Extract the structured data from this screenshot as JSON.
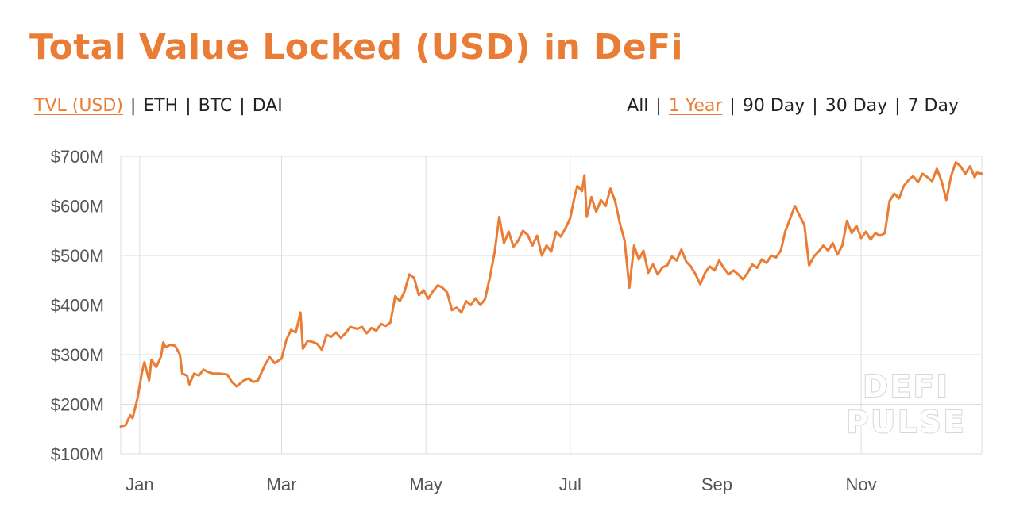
{
  "title": "Total Value Locked (USD) in DeFi",
  "metric_toggles": [
    {
      "label": "TVL (USD)",
      "active": true
    },
    {
      "label": "ETH",
      "active": false
    },
    {
      "label": "BTC",
      "active": false
    },
    {
      "label": "DAI",
      "active": false
    }
  ],
  "range_toggles": [
    {
      "label": "All",
      "active": false
    },
    {
      "label": "1 Year",
      "active": true
    },
    {
      "label": "90 Day",
      "active": false
    },
    {
      "label": "30 Day",
      "active": false
    },
    {
      "label": "7 Day",
      "active": false
    }
  ],
  "separator": "|",
  "watermark": {
    "line1": "DEFI",
    "line2": "PULSE"
  },
  "colors": {
    "accent": "#ea7d35",
    "line": "#ea7d35",
    "grid": "#dddddd"
  },
  "chart_data": {
    "type": "line",
    "title": "Total Value Locked (USD) in DeFi",
    "xlabel": "",
    "ylabel": "",
    "x_tick_labels": [
      "Jan",
      "Mar",
      "May",
      "Jul",
      "Sep",
      "Nov"
    ],
    "y_tick_values": [
      700,
      600,
      500,
      400,
      300,
      200,
      100
    ],
    "y_tick_labels": [
      "$700M",
      "$600M",
      "$500M",
      "$400M",
      "$300M",
      "$200M",
      "$100M"
    ],
    "ylim": [
      100,
      700
    ],
    "xlim": [
      "Dec 24",
      "Dec 22"
    ],
    "y_units": "$M",
    "grid": true,
    "series": [
      {
        "values": [
          [
            "Dec 24",
            155
          ],
          [
            "Dec 26",
            158
          ],
          [
            "Dec 28",
            178
          ],
          [
            "Dec 29",
            172
          ],
          [
            "Dec 31",
            210
          ],
          [
            "Jan 2",
            265
          ],
          [
            "Jan 3",
            285
          ],
          [
            "Jan 5",
            248
          ],
          [
            "Jan 6",
            290
          ],
          [
            "Jan 8",
            275
          ],
          [
            "Jan 10",
            296
          ],
          [
            "Jan 11",
            325
          ],
          [
            "Jan 12",
            315
          ],
          [
            "Jan 14",
            320
          ],
          [
            "Jan 16",
            318
          ],
          [
            "Jan 18",
            300
          ],
          [
            "Jan 19",
            262
          ],
          [
            "Jan 21",
            258
          ],
          [
            "Jan 22",
            240
          ],
          [
            "Jan 24",
            262
          ],
          [
            "Jan 26",
            258
          ],
          [
            "Jan 28",
            270
          ],
          [
            "Jan 30",
            265
          ],
          [
            "Feb 1",
            262
          ],
          [
            "Feb 4",
            262
          ],
          [
            "Feb 7",
            260
          ],
          [
            "Feb 9",
            245
          ],
          [
            "Feb 11",
            236
          ],
          [
            "Feb 14",
            248
          ],
          [
            "Feb 16",
            252
          ],
          [
            "Feb 18",
            245
          ],
          [
            "Feb 20",
            248
          ],
          [
            "Feb 23",
            280
          ],
          [
            "Feb 25",
            295
          ],
          [
            "Feb 27",
            283
          ],
          [
            "Mar 1",
            292
          ],
          [
            "Mar 3",
            330
          ],
          [
            "Mar 5",
            350
          ],
          [
            "Mar 7",
            345
          ],
          [
            "Mar 9",
            385
          ],
          [
            "Mar 10",
            312
          ],
          [
            "Mar 12",
            328
          ],
          [
            "Mar 14",
            326
          ],
          [
            "Mar 16",
            322
          ],
          [
            "Mar 18",
            310
          ],
          [
            "Mar 20",
            340
          ],
          [
            "Mar 22",
            336
          ],
          [
            "Mar 24",
            345
          ],
          [
            "Mar 26",
            334
          ],
          [
            "Mar 28",
            343
          ],
          [
            "Mar 30",
            356
          ],
          [
            "Apr 2",
            352
          ],
          [
            "Apr 4",
            356
          ],
          [
            "Apr 6",
            343
          ],
          [
            "Apr 8",
            354
          ],
          [
            "Apr 10",
            348
          ],
          [
            "Apr 12",
            362
          ],
          [
            "Apr 14",
            358
          ],
          [
            "Apr 16",
            365
          ],
          [
            "Apr 18",
            418
          ],
          [
            "Apr 20",
            408
          ],
          [
            "Apr 22",
            428
          ],
          [
            "Apr 24",
            462
          ],
          [
            "Apr 26",
            455
          ],
          [
            "Apr 28",
            420
          ],
          [
            "Apr 30",
            430
          ],
          [
            "May 2",
            413
          ],
          [
            "May 4",
            428
          ],
          [
            "May 6",
            440
          ],
          [
            "May 8",
            435
          ],
          [
            "May 10",
            425
          ],
          [
            "May 12",
            390
          ],
          [
            "May 14",
            395
          ],
          [
            "May 16",
            385
          ],
          [
            "May 18",
            408
          ],
          [
            "May 20",
            400
          ],
          [
            "May 22",
            414
          ],
          [
            "May 24",
            400
          ],
          [
            "May 26",
            412
          ],
          [
            "May 28",
            455
          ],
          [
            "May 30",
            505
          ],
          [
            "Jun 1",
            578
          ],
          [
            "Jun 3",
            525
          ],
          [
            "Jun 5",
            548
          ],
          [
            "Jun 7",
            518
          ],
          [
            "Jun 9",
            530
          ],
          [
            "Jun 11",
            550
          ],
          [
            "Jun 13",
            542
          ],
          [
            "Jun 15",
            520
          ],
          [
            "Jun 17",
            540
          ],
          [
            "Jun 19",
            500
          ],
          [
            "Jun 21",
            520
          ],
          [
            "Jun 23",
            508
          ],
          [
            "Jun 25",
            548
          ],
          [
            "Jun 27",
            538
          ],
          [
            "Jun 29",
            555
          ],
          [
            "Jul 1",
            575
          ],
          [
            "Jul 3",
            622
          ],
          [
            "Jul 4",
            640
          ],
          [
            "Jul 6",
            630
          ],
          [
            "Jul 7",
            662
          ],
          [
            "Jul 8",
            578
          ],
          [
            "Jul 10",
            618
          ],
          [
            "Jul 12",
            588
          ],
          [
            "Jul 14",
            612
          ],
          [
            "Jul 16",
            600
          ],
          [
            "Jul 18",
            635
          ],
          [
            "Jul 20",
            610
          ],
          [
            "Jul 22",
            565
          ],
          [
            "Jul 24",
            530
          ],
          [
            "Jul 26",
            435
          ],
          [
            "Jul 28",
            520
          ],
          [
            "Jul 30",
            492
          ],
          [
            "Aug 1",
            510
          ],
          [
            "Aug 3",
            465
          ],
          [
            "Aug 5",
            482
          ],
          [
            "Aug 7",
            462
          ],
          [
            "Aug 9",
            476
          ],
          [
            "Aug 11",
            480
          ],
          [
            "Aug 13",
            498
          ],
          [
            "Aug 15",
            490
          ],
          [
            "Aug 17",
            512
          ],
          [
            "Aug 19",
            488
          ],
          [
            "Aug 21",
            478
          ],
          [
            "Aug 23",
            462
          ],
          [
            "Aug 25",
            442
          ],
          [
            "Aug 27",
            465
          ],
          [
            "Aug 29",
            478
          ],
          [
            "Aug 31",
            470
          ],
          [
            "Sep 2",
            490
          ],
          [
            "Sep 4",
            474
          ],
          [
            "Sep 6",
            462
          ],
          [
            "Sep 8",
            470
          ],
          [
            "Sep 10",
            462
          ],
          [
            "Sep 12",
            452
          ],
          [
            "Sep 14",
            465
          ],
          [
            "Sep 16",
            482
          ],
          [
            "Sep 18",
            475
          ],
          [
            "Sep 20",
            492
          ],
          [
            "Sep 22",
            485
          ],
          [
            "Sep 24",
            500
          ],
          [
            "Sep 26",
            496
          ],
          [
            "Sep 28",
            510
          ],
          [
            "Sep 30",
            550
          ],
          [
            "Oct 2",
            575
          ],
          [
            "Oct 4",
            600
          ],
          [
            "Oct 6",
            580
          ],
          [
            "Oct 8",
            562
          ],
          [
            "Oct 10",
            480
          ],
          [
            "Oct 12",
            498
          ],
          [
            "Oct 14",
            508
          ],
          [
            "Oct 16",
            520
          ],
          [
            "Oct 18",
            510
          ],
          [
            "Oct 20",
            525
          ],
          [
            "Oct 22",
            502
          ],
          [
            "Oct 24",
            520
          ],
          [
            "Oct 26",
            570
          ],
          [
            "Oct 28",
            545
          ],
          [
            "Oct 30",
            560
          ],
          [
            "Nov 1",
            535
          ],
          [
            "Nov 3",
            548
          ],
          [
            "Nov 5",
            532
          ],
          [
            "Nov 7",
            545
          ],
          [
            "Nov 9",
            540
          ],
          [
            "Nov 11",
            545
          ],
          [
            "Nov 13",
            610
          ],
          [
            "Nov 15",
            625
          ],
          [
            "Nov 17",
            615
          ],
          [
            "Nov 19",
            640
          ],
          [
            "Nov 21",
            652
          ],
          [
            "Nov 23",
            660
          ],
          [
            "Nov 25",
            648
          ],
          [
            "Nov 27",
            665
          ],
          [
            "Nov 29",
            658
          ],
          [
            "Dec 1",
            650
          ],
          [
            "Dec 3",
            675
          ],
          [
            "Dec 5",
            650
          ],
          [
            "Dec 7",
            612
          ],
          [
            "Dec 9",
            660
          ],
          [
            "Dec 11",
            688
          ],
          [
            "Dec 13",
            680
          ],
          [
            "Dec 15",
            665
          ],
          [
            "Dec 17",
            680
          ],
          [
            "Dec 19",
            658
          ],
          [
            "Dec 20",
            667
          ],
          [
            "Dec 22",
            665
          ]
        ]
      }
    ]
  }
}
